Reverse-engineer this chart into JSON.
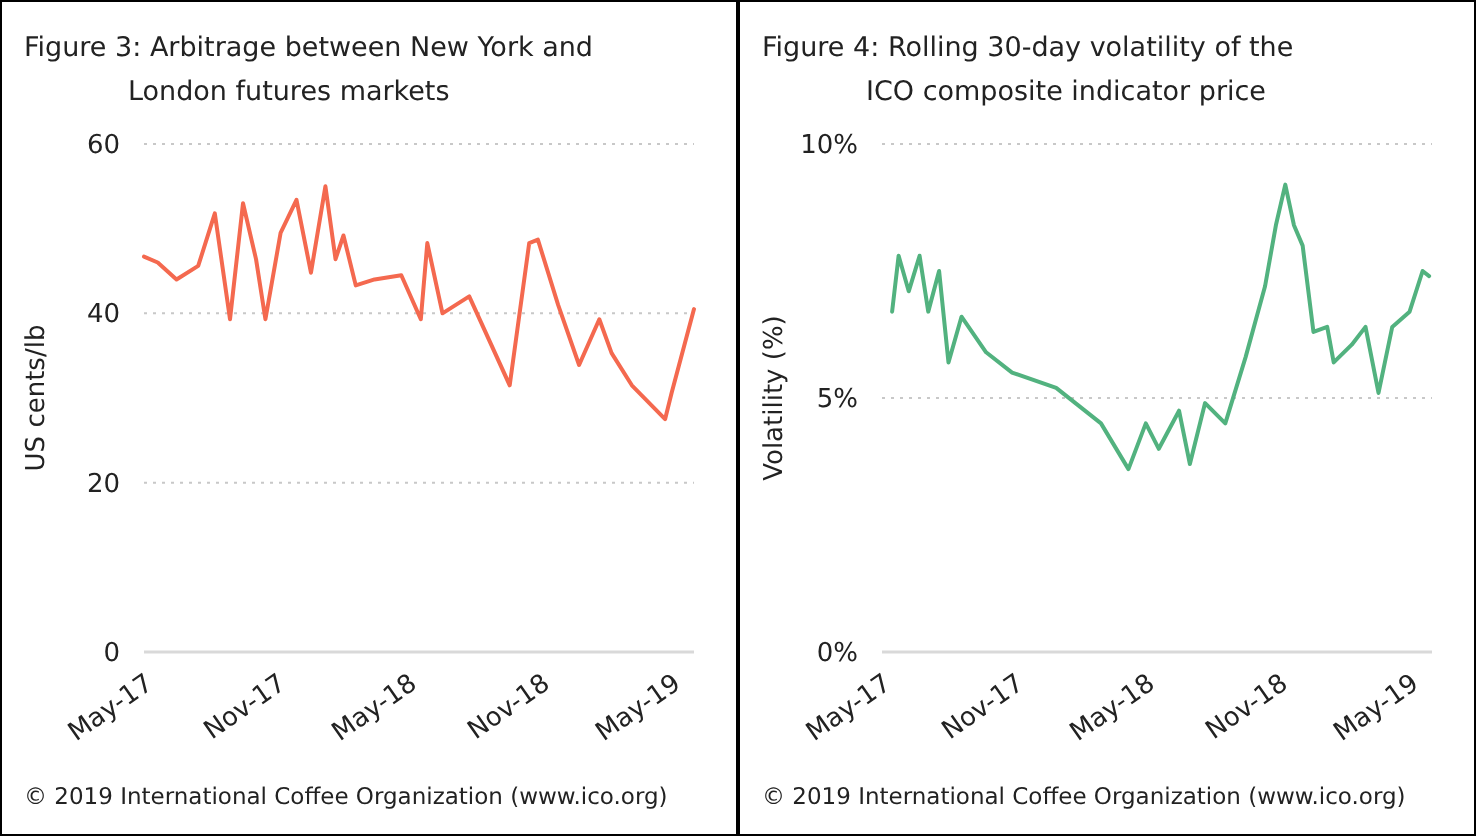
{
  "chart_data": [
    {
      "type": "line",
      "title": "Figure 3:  Arbitrage between New York and London futures markets",
      "ylabel": "US cents/lb",
      "annotations": [
        "© 2019 International Coffee Organization (www.ico.org)"
      ],
      "grid": "y",
      "marker": "none",
      "line_style": "solid",
      "xlim": [
        "2017-05-01",
        "2019-06-01"
      ],
      "ylim": [
        0,
        60
      ],
      "yticks": [
        0,
        20,
        40,
        60
      ],
      "xticks": [
        {
          "value": "2017-05-01",
          "label": "May-17"
        },
        {
          "value": "2017-11-01",
          "label": "Nov-17"
        },
        {
          "value": "2018-05-01",
          "label": "May-18"
        },
        {
          "value": "2018-11-01",
          "label": "Nov-18"
        },
        {
          "value": "2019-05-01",
          "label": "May-19"
        }
      ],
      "series": [
        {
          "color": "#f4694f",
          "x": [
            "2017-05-01",
            "2017-05-20",
            "2017-06-15",
            "2017-07-15",
            "2017-08-07",
            "2017-08-28",
            "2017-09-15",
            "2017-10-03",
            "2017-10-16",
            "2017-11-06",
            "2017-11-28",
            "2017-12-18",
            "2018-01-07",
            "2018-01-21",
            "2018-02-01",
            "2018-02-18",
            "2018-03-16",
            "2018-04-22",
            "2018-05-19",
            "2018-05-28",
            "2018-06-18",
            "2018-07-25",
            "2018-09-19",
            "2018-10-16",
            "2018-10-28",
            "2018-11-25",
            "2018-12-24",
            "2019-01-21",
            "2019-02-07",
            "2019-03-07",
            "2019-04-22",
            "2019-05-01",
            "2019-06-01"
          ],
          "values": [
            46.7,
            46,
            44,
            45.6,
            51.8,
            39.3,
            53,
            46.4,
            39.3,
            49.5,
            53.4,
            44.8,
            55,
            46.4,
            49.2,
            43.3,
            44,
            44.5,
            39.3,
            48.3,
            40,
            42,
            31.5,
            48.3,
            48.7,
            41,
            33.9,
            39.3,
            35.3,
            31.5,
            27.5,
            30.6,
            40.5
          ]
        }
      ]
    },
    {
      "type": "line",
      "title": "Figure 4:  Rolling 30-day volatility of the ICO composite indicator price",
      "ylabel": "Volatility (%)",
      "annotations": [
        "© 2019 International Coffee Organization (www.ico.org)"
      ],
      "grid": "y",
      "marker": "none",
      "line_style": "solid",
      "xlim": [
        "2017-05-01",
        "2019-06-01"
      ],
      "ylim": [
        0,
        10
      ],
      "yticks": [
        {
          "value": 0,
          "label": "0%"
        },
        {
          "value": 5,
          "label": "5%"
        },
        {
          "value": 10,
          "label": "10%"
        }
      ],
      "xticks": [
        {
          "value": "2017-05-01",
          "label": "May-17"
        },
        {
          "value": "2017-11-01",
          "label": "Nov-17"
        },
        {
          "value": "2018-05-01",
          "label": "May-18"
        },
        {
          "value": "2018-11-01",
          "label": "Nov-18"
        },
        {
          "value": "2019-05-01",
          "label": "May-19"
        }
      ],
      "series": [
        {
          "color": "#52b27f",
          "x": [
            "2017-05-15",
            "2017-05-24",
            "2017-06-07",
            "2017-06-22",
            "2017-07-04",
            "2017-07-19",
            "2017-08-01",
            "2017-08-19",
            "2017-09-22",
            "2017-10-28",
            "2017-12-28",
            "2018-02-28",
            "2018-04-07",
            "2018-05-01",
            "2018-05-19",
            "2018-06-16",
            "2018-07-01",
            "2018-07-22",
            "2018-08-19",
            "2018-09-16",
            "2018-10-13",
            "2018-10-28",
            "2018-11-10",
            "2018-11-22",
            "2018-12-04",
            "2018-12-19",
            "2019-01-07",
            "2019-01-16",
            "2019-02-10",
            "2019-03-01",
            "2019-03-19",
            "2019-04-07",
            "2019-05-01",
            "2019-05-19",
            "2019-05-28"
          ],
          "values": [
            6.7,
            7.8,
            7.1,
            7.8,
            6.7,
            7.5,
            5.7,
            6.6,
            5.9,
            5.5,
            5.2,
            4.5,
            3.6,
            4.5,
            4.0,
            4.75,
            3.7,
            4.9,
            4.5,
            5.8,
            7.2,
            8.4,
            9.2,
            8.4,
            8.0,
            6.3,
            6.4,
            5.7,
            6.05,
            6.4,
            5.1,
            6.4,
            6.7,
            7.5,
            7.4
          ]
        }
      ]
    }
  ]
}
